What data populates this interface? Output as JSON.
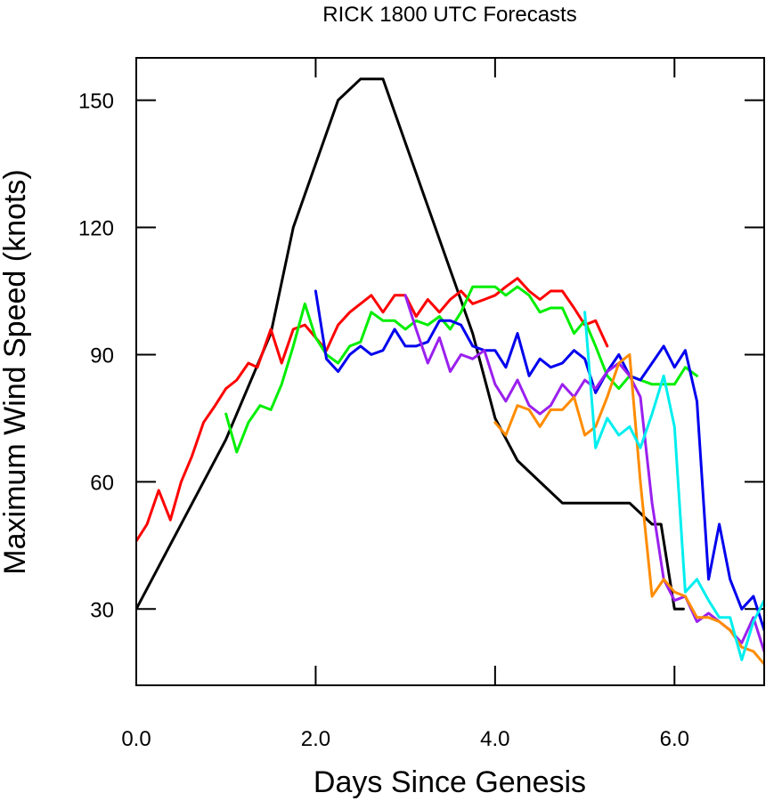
{
  "chart_data": {
    "type": "line",
    "title": "RICK 1800 UTC Forecasts",
    "xlabel": "Days Since Genesis",
    "ylabel": "Maximum Wind Speed (knots)",
    "xlim": [
      0,
      7
    ],
    "ylim": [
      12,
      160
    ],
    "xticks": [
      0,
      2,
      4,
      6
    ],
    "xtick_labels": [
      "0.0",
      "2.0",
      "4.0",
      "6.0"
    ],
    "yticks": [
      30,
      60,
      90,
      120,
      150
    ],
    "ytick_labels": [
      "30",
      "60",
      "90",
      "120",
      "150"
    ],
    "grid": false,
    "series": [
      {
        "color": "#000000",
        "x": [
          0,
          1,
          1.5,
          1.75,
          2,
          2.25,
          2.5,
          2.75,
          3,
          3.25,
          3.5,
          3.75,
          4,
          4.25,
          4.5,
          4.75,
          5,
          5.25,
          5.5,
          5.75,
          5.85,
          6,
          6.1
        ],
        "y": [
          30,
          70,
          95,
          120,
          135,
          150,
          155,
          155,
          140,
          125,
          110,
          95,
          75,
          65,
          60,
          55,
          55,
          55,
          55,
          50,
          50,
          30,
          30
        ]
      },
      {
        "color": "#ff0000",
        "x": [
          0,
          0.12,
          0.25,
          0.38,
          0.5,
          0.62,
          0.75,
          0.88,
          1,
          1.12,
          1.25,
          1.35,
          1.5,
          1.62,
          1.75,
          1.88,
          2,
          2.12,
          2.25,
          2.38,
          2.5,
          2.62,
          2.75,
          2.88,
          3,
          3.12,
          3.25,
          3.38,
          3.5,
          3.62,
          3.75,
          3.88,
          4,
          4.12,
          4.25,
          4.38,
          4.5,
          4.62,
          4.75,
          4.88,
          5,
          5.12,
          5.25
        ],
        "y": [
          46,
          50,
          58,
          51,
          60,
          66,
          74,
          78,
          82,
          84,
          88,
          87,
          96,
          88,
          96,
          97,
          94,
          91,
          97,
          100,
          102,
          104,
          100,
          104,
          104,
          99,
          103,
          100,
          103,
          105,
          102,
          103,
          104,
          106,
          108,
          105,
          103,
          105,
          105,
          101,
          97,
          98,
          92
        ]
      },
      {
        "color": "#00ee00",
        "x": [
          1,
          1.12,
          1.25,
          1.38,
          1.5,
          1.62,
          1.75,
          1.88,
          2,
          2.12,
          2.25,
          2.38,
          2.5,
          2.62,
          2.75,
          2.88,
          3,
          3.12,
          3.25,
          3.38,
          3.5,
          3.62,
          3.75,
          3.88,
          4,
          4.12,
          4.25,
          4.38,
          4.5,
          4.62,
          4.75,
          4.88,
          5,
          5.12,
          5.25,
          5.38,
          5.5,
          5.62,
          5.75,
          5.88,
          6,
          6.12,
          6.25
        ],
        "y": [
          76,
          67,
          74,
          78,
          77,
          83,
          92,
          102,
          94,
          90,
          88,
          92,
          93,
          100,
          98,
          98,
          96,
          98,
          97,
          99,
          96,
          100,
          106,
          106,
          106,
          104,
          106,
          104,
          100,
          101,
          101,
          95,
          98,
          92,
          85,
          82,
          85,
          84,
          83,
          83,
          83,
          87,
          85
        ]
      },
      {
        "color": "#0000ee",
        "x": [
          2,
          2.12,
          2.25,
          2.38,
          2.5,
          2.62,
          2.75,
          2.88,
          3,
          3.12,
          3.25,
          3.38,
          3.5,
          3.62,
          3.75,
          3.88,
          4,
          4.12,
          4.25,
          4.38,
          4.5,
          4.62,
          4.75,
          4.88,
          5,
          5.12,
          5.25,
          5.38,
          5.5,
          5.62,
          5.75,
          5.88,
          6,
          6.12,
          6.25,
          6.38,
          6.5,
          6.62,
          6.75,
          6.88,
          7
        ],
        "y": [
          105,
          89,
          86,
          90,
          92,
          90,
          91,
          96,
          92,
          92,
          93,
          98,
          98,
          97,
          92,
          91,
          91,
          87,
          95,
          85,
          89,
          87,
          88,
          91,
          89,
          81,
          86,
          90,
          85,
          84,
          88,
          92,
          87,
          91,
          79,
          37,
          50,
          37,
          30,
          33,
          25
        ]
      },
      {
        "color": "#9a20ee",
        "x": [
          3,
          3.12,
          3.25,
          3.38,
          3.5,
          3.62,
          3.75,
          3.88,
          4,
          4.12,
          4.25,
          4.38,
          4.5,
          4.62,
          4.75,
          4.88,
          5,
          5.12,
          5.25,
          5.38,
          5.5,
          5.62,
          5.75,
          5.88,
          6,
          6.12,
          6.25,
          6.38,
          6.5,
          6.62,
          6.75,
          6.88,
          7
        ],
        "y": [
          104,
          96,
          88,
          94,
          86,
          90,
          89,
          91,
          83,
          79,
          84,
          78,
          76,
          78,
          83,
          80,
          84,
          82,
          86,
          88,
          85,
          80,
          55,
          37,
          32,
          33,
          27,
          29,
          27,
          25,
          22,
          28,
          20
        ]
      },
      {
        "color": "#ff8c00",
        "x": [
          4,
          4.12,
          4.25,
          4.38,
          4.5,
          4.62,
          4.75,
          4.88,
          5,
          5.12,
          5.25,
          5.38,
          5.5,
          5.62,
          5.75,
          5.88,
          6,
          6.12,
          6.25,
          6.38,
          6.5,
          6.62,
          6.75,
          6.88,
          7
        ],
        "y": [
          74,
          71,
          78,
          77,
          73,
          77,
          77,
          80,
          71,
          73,
          80,
          88,
          90,
          60,
          33,
          37,
          34,
          33,
          28,
          28,
          27,
          25,
          21,
          20,
          17
        ]
      },
      {
        "color": "#00eeee",
        "x": [
          5,
          5.12,
          5.25,
          5.38,
          5.5,
          5.62,
          5.75,
          5.88,
          6,
          6.12,
          6.25,
          6.38,
          6.5,
          6.62,
          6.75,
          6.88,
          7
        ],
        "y": [
          100,
          68,
          75,
          71,
          73,
          68,
          76,
          85,
          73,
          34,
          37,
          32,
          28,
          28,
          18,
          27,
          32
        ]
      }
    ]
  }
}
